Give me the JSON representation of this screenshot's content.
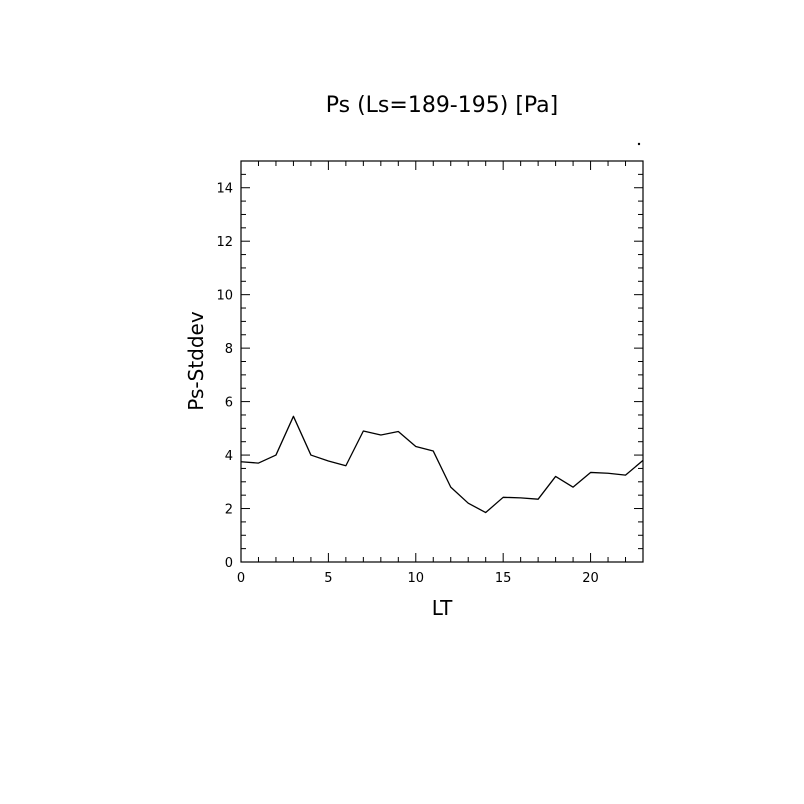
{
  "chart_data": {
    "type": "line",
    "title": "Ps (Ls=189-195) [Pa]",
    "xlabel": "LT",
    "ylabel": "Ps-Stddev",
    "xlim": [
      0,
      23
    ],
    "ylim": [
      0,
      15
    ],
    "x_ticks": [
      0,
      5,
      10,
      15,
      20
    ],
    "y_ticks": [
      0,
      2,
      4,
      6,
      8,
      10,
      12,
      14
    ],
    "grid": false,
    "series": [
      {
        "x": [
          0,
          1,
          2,
          3,
          4,
          5,
          6,
          7,
          8,
          9,
          10,
          11,
          12,
          13,
          14,
          15,
          16,
          17,
          18,
          19,
          20,
          21,
          22,
          23
        ],
        "values": [
          3.75,
          3.7,
          4.0,
          5.45,
          4.0,
          3.78,
          3.6,
          4.9,
          4.75,
          4.88,
          4.32,
          4.15,
          2.8,
          2.2,
          1.85,
          2.42,
          2.4,
          2.35,
          3.2,
          2.8,
          3.35,
          3.32,
          3.25,
          3.8
        ]
      }
    ],
    "line_color": "#000000"
  }
}
